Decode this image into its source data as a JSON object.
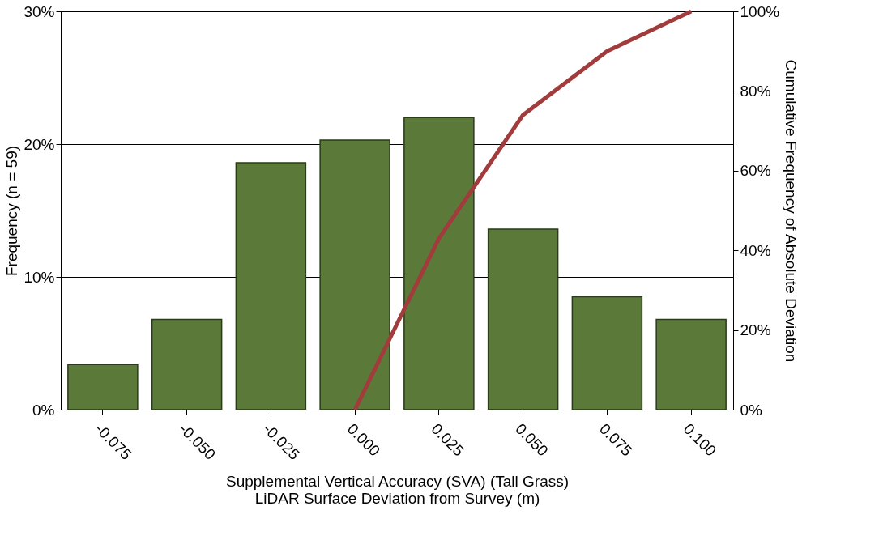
{
  "chart_data": {
    "type": "bar",
    "xlabel": "Supplemental Vertical Accuracy (SVA) (Tall Grass)\nLiDAR Surface Deviation from Survey (m)",
    "ylabel": "Frequency (n = 59)",
    "y2label": "Cumulative Frequency of Absolute Deviation",
    "categories": [
      "-0.075",
      "-0.050",
      "-0.025",
      "0.000",
      "0.025",
      "0.050",
      "0.075",
      "0.100"
    ],
    "series": [
      {
        "color": "#5b7a3a",
        "values": [
          3.4,
          6.8,
          18.6,
          20.3,
          22.0,
          13.6,
          8.5,
          6.8
        ]
      },
      {
        "type": "line",
        "axis": "y2",
        "color": "#a23b3b",
        "values": [
          null,
          null,
          null,
          0,
          43,
          74,
          90,
          100
        ]
      }
    ],
    "ylim": [
      0,
      30
    ],
    "yticks": [
      {
        "value": 0,
        "label": "0%"
      },
      {
        "value": 10,
        "label": "10%"
      },
      {
        "value": 20,
        "label": "20%"
      },
      {
        "value": 30,
        "label": "30%"
      }
    ],
    "y2lim": [
      0,
      100
    ],
    "y2ticks": [
      {
        "value": 0,
        "label": "0%"
      },
      {
        "value": 20,
        "label": "20%"
      },
      {
        "value": 40,
        "label": "40%"
      },
      {
        "value": 60,
        "label": "60%"
      },
      {
        "value": 80,
        "label": "80%"
      },
      {
        "value": 100,
        "label": "100%"
      }
    ],
    "grid": "y",
    "legend": false
  }
}
